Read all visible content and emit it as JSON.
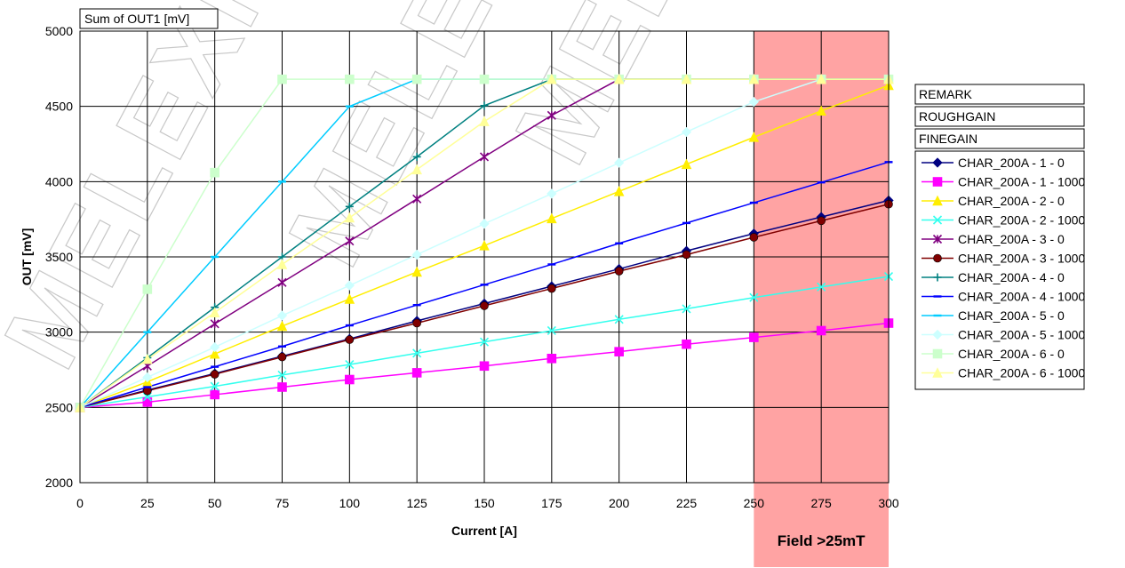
{
  "chart_data": {
    "type": "line",
    "title": "Sum of OUT1 [mV]",
    "xlabel": "Current [A]",
    "ylabel": "OUT [mV]",
    "xlim": [
      0,
      300
    ],
    "ylim": [
      2000,
      5000
    ],
    "grid": true,
    "legend_placement": "right",
    "x": [
      0,
      25,
      50,
      75,
      100,
      125,
      150,
      175,
      200,
      225,
      250,
      275,
      300
    ],
    "x_ticks": [
      "0",
      "25",
      "50",
      "75",
      "100",
      "125",
      "150",
      "175",
      "200",
      "225",
      "250",
      "275",
      "300"
    ],
    "y_ticks": [
      "2000",
      "2500",
      "3000",
      "3500",
      "4000",
      "4500",
      "5000"
    ],
    "y_tick_values": [
      2000,
      2500,
      3000,
      3500,
      4000,
      4500,
      5000
    ],
    "watermark": "MELEXIS",
    "highlight_region": {
      "x_from": 250,
      "x_to": 300,
      "label": "Field >25mT",
      "color": "#ffa3a3"
    },
    "legend_headers": [
      "REMARK",
      "ROUGHGAIN",
      "FINEGAIN"
    ],
    "series": [
      {
        "name": "CHAR_200A - 1 - 0",
        "color": "#000080",
        "marker": "diamond",
        "values": [
          2500,
          2615,
          2725,
          2840,
          2955,
          3075,
          3190,
          3305,
          3420,
          3540,
          3655,
          3765,
          3875
        ]
      },
      {
        "name": "CHAR_200A - 1 - 1000",
        "color": "#ff00ff",
        "marker": "square",
        "values": [
          2500,
          2535,
          2585,
          2635,
          2685,
          2730,
          2775,
          2825,
          2870,
          2920,
          2965,
          3010,
          3060
        ]
      },
      {
        "name": "CHAR_200A - 2 - 0",
        "color": "#ffee00",
        "marker": "triangle",
        "values": [
          2500,
          2670,
          2855,
          3040,
          3220,
          3400,
          3575,
          3755,
          3935,
          4115,
          4295,
          4470,
          4640
        ]
      },
      {
        "name": "CHAR_200A - 2 - 1000",
        "color": "#33ffee",
        "marker": "x",
        "values": [
          2500,
          2570,
          2640,
          2715,
          2785,
          2860,
          2935,
          3010,
          3085,
          3155,
          3230,
          3300,
          3370
        ]
      },
      {
        "name": "CHAR_200A - 3 - 0",
        "color": "#800080",
        "marker": "star",
        "values": [
          2500,
          2775,
          3055,
          3330,
          3605,
          3885,
          4165,
          4440,
          4680,
          4680,
          4680,
          4680,
          4680
        ]
      },
      {
        "name": "CHAR_200A - 3 - 1000",
        "color": "#800000",
        "marker": "circle",
        "values": [
          2500,
          2610,
          2720,
          2835,
          2950,
          3060,
          3175,
          3290,
          3405,
          3515,
          3630,
          3740,
          3850
        ]
      },
      {
        "name": "CHAR_200A - 4 - 0",
        "color": "#008080",
        "marker": "plus",
        "values": [
          2500,
          2830,
          3165,
          3500,
          3835,
          4165,
          4505,
          4680,
          4680,
          4680,
          4680,
          4680,
          4680
        ]
      },
      {
        "name": "CHAR_200A - 4 - 1000",
        "color": "#0000ff",
        "marker": "dash",
        "values": [
          2500,
          2635,
          2770,
          2905,
          3045,
          3180,
          3315,
          3450,
          3590,
          3725,
          3860,
          3995,
          4130
        ]
      },
      {
        "name": "CHAR_200A - 5 - 0",
        "color": "#00ccff",
        "marker": "dash",
        "values": [
          2500,
          3000,
          3500,
          4000,
          4500,
          4680,
          4680,
          4680,
          4680,
          4680,
          4680,
          4680,
          4680
        ]
      },
      {
        "name": "CHAR_200A - 5 - 1000",
        "color": "#ccffff",
        "marker": "diamond",
        "values": [
          2500,
          2700,
          2900,
          3110,
          3310,
          3515,
          3720,
          3920,
          4125,
          4330,
          4530,
          4680,
          4680
        ]
      },
      {
        "name": "CHAR_200A - 6 - 0",
        "color": "#ccffcc",
        "marker": "square",
        "values": [
          2500,
          3285,
          4060,
          4680,
          4680,
          4680,
          4680,
          4680,
          4680,
          4680,
          4680,
          4680,
          4680
        ]
      },
      {
        "name": "CHAR_200A - 6 - 1000",
        "color": "#ffff99",
        "marker": "triangle",
        "values": [
          2500,
          2820,
          3130,
          3450,
          3760,
          4080,
          4400,
          4680,
          4680,
          4680,
          4680,
          4680,
          4680
        ]
      }
    ]
  }
}
